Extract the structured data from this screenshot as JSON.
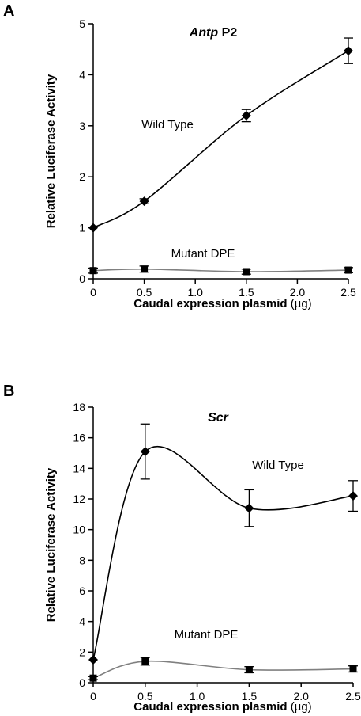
{
  "chart_data": [
    {
      "type": "line",
      "panel_letter": "A",
      "title_italic": "Antp",
      "title_suffix": " P2",
      "xlabel": "Caudal expression plasmid",
      "xunit": "(µg)",
      "ylabel": "Relative Luciferase Activity",
      "xlim": [
        0,
        2.5
      ],
      "ylim": [
        0,
        5
      ],
      "xticks": [
        "0",
        "0.5",
        "1.0",
        "1.5",
        "2.0",
        "2.5"
      ],
      "xtick_values": [
        0,
        0.5,
        1.0,
        1.5,
        2.0,
        2.5
      ],
      "yticks": [
        "0",
        "1",
        "2",
        "3",
        "4",
        "5"
      ],
      "ytick_values": [
        0,
        1,
        2,
        3,
        4,
        5
      ],
      "grid": false,
      "series": [
        {
          "name": "Wild Type",
          "color": "#000000",
          "marker": "diamond",
          "x": [
            0,
            0.5,
            1.5,
            2.5
          ],
          "y": [
            1.0,
            1.52,
            3.2,
            4.47
          ],
          "err": [
            0.0,
            0.05,
            0.12,
            0.25
          ]
        },
        {
          "name": "Mutant DPE",
          "color": "#808080",
          "marker": "square",
          "x": [
            0,
            0.5,
            1.5,
            2.5
          ],
          "y": [
            0.16,
            0.19,
            0.14,
            0.17
          ],
          "err": [
            0.05,
            0.06,
            0.05,
            0.05
          ]
        }
      ]
    },
    {
      "type": "line",
      "panel_letter": "B",
      "title_italic": "Scr",
      "title_suffix": "",
      "xlabel": "Caudal expression plasmid",
      "xunit": "(µg)",
      "ylabel": "Relative Luciferase Activity",
      "xlim": [
        0,
        2.5
      ],
      "ylim": [
        0,
        18
      ],
      "xticks": [
        "0",
        "0.5",
        "1.0",
        "1.5",
        "2.0",
        "2.5"
      ],
      "xtick_values": [
        0,
        0.5,
        1.0,
        1.5,
        2.0,
        2.5
      ],
      "yticks": [
        "0",
        "2",
        "4",
        "6",
        "8",
        "10",
        "12",
        "14",
        "16",
        "18"
      ],
      "ytick_values": [
        0,
        2,
        4,
        6,
        8,
        10,
        12,
        14,
        16,
        18
      ],
      "grid": false,
      "series": [
        {
          "name": "Wild Type",
          "color": "#000000",
          "marker": "diamond",
          "x": [
            0,
            0.5,
            1.5,
            2.5
          ],
          "y": [
            1.5,
            15.1,
            11.4,
            12.2
          ],
          "err": [
            0.0,
            1.8,
            1.2,
            1.0
          ]
        },
        {
          "name": "Mutant DPE",
          "color": "#808080",
          "marker": "square",
          "x": [
            0,
            0.5,
            1.5,
            2.5
          ],
          "y": [
            0.3,
            1.4,
            0.85,
            0.9
          ],
          "err": [
            0.1,
            0.25,
            0.2,
            0.2
          ]
        }
      ]
    }
  ]
}
